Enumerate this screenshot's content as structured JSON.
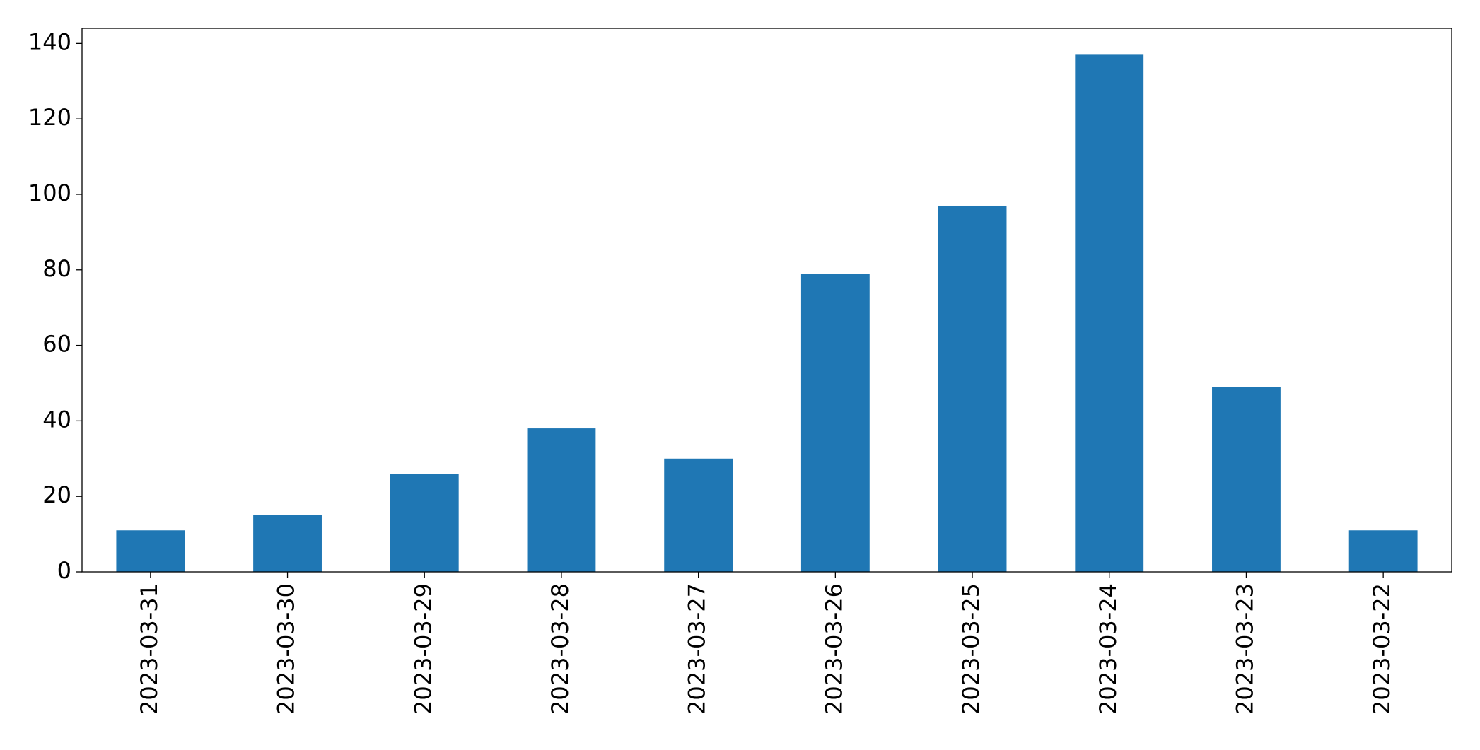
{
  "chart_data": {
    "type": "bar",
    "categories": [
      "2023-03-31",
      "2023-03-30",
      "2023-03-29",
      "2023-03-28",
      "2023-03-27",
      "2023-03-26",
      "2023-03-25",
      "2023-03-24",
      "2023-03-23",
      "2023-03-22"
    ],
    "values": [
      11,
      15,
      26,
      38,
      30,
      79,
      97,
      137,
      49,
      11
    ],
    "color": "#1f77b4",
    "ylim": [
      0,
      144
    ],
    "yticks": [
      0,
      20,
      40,
      60,
      80,
      100,
      120,
      140
    ],
    "grid": false
  }
}
